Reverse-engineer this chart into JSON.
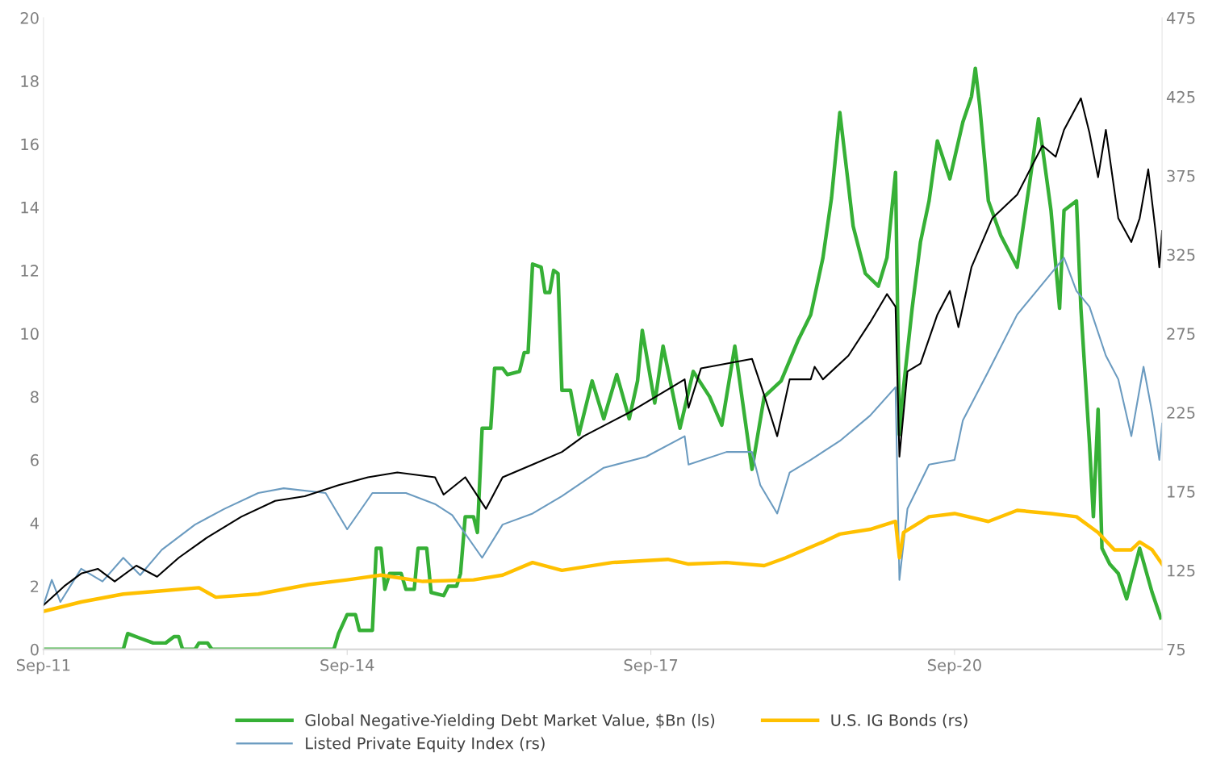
{
  "chart_data": {
    "type": "line",
    "xlim": [
      "2011-09-01",
      "2022-09-20"
    ],
    "xticks": [
      {
        "value": "2011-09-01",
        "label": "Sep-11"
      },
      {
        "value": "2014-09-01",
        "label": "Sep-14"
      },
      {
        "value": "2017-09-01",
        "label": "Sep-17"
      },
      {
        "value": "2020-09-01",
        "label": "Sep-20"
      }
    ],
    "ylim": [
      0,
      20
    ],
    "yticks": [
      0,
      2,
      4,
      6,
      8,
      10,
      12,
      14,
      16,
      18,
      20
    ],
    "y2lim": [
      75,
      475
    ],
    "y2ticks": [
      75,
      125,
      175,
      225,
      275,
      325,
      375,
      425,
      475
    ],
    "grid": false,
    "legend": "bottom",
    "series": [
      {
        "name": "Global Negative-Yielding Debt Market Value, $Bn (ls)",
        "color": "#36b036",
        "axis": "y",
        "x": [
          "2011-09-01",
          "2012-06-15",
          "2012-07-01",
          "2012-08-15",
          "2012-10-01",
          "2012-11-15",
          "2012-12-15",
          "2013-01-01",
          "2013-01-15",
          "2013-03-01",
          "2013-03-15",
          "2013-04-15",
          "2013-05-01",
          "2014-07-15",
          "2014-08-01",
          "2014-09-01",
          "2014-10-01",
          "2014-10-15",
          "2014-12-01",
          "2014-12-15",
          "2015-01-01",
          "2015-01-15",
          "2015-02-01",
          "2015-03-15",
          "2015-04-01",
          "2015-05-01",
          "2015-05-15",
          "2015-06-15",
          "2015-07-01",
          "2015-08-15",
          "2015-09-01",
          "2015-10-01",
          "2015-10-15",
          "2015-11-01",
          "2015-12-01",
          "2015-12-15",
          "2016-01-01",
          "2016-02-01",
          "2016-02-15",
          "2016-03-15",
          "2016-04-01",
          "2016-05-15",
          "2016-06-01",
          "2016-06-15",
          "2016-07-01",
          "2016-08-01",
          "2016-08-15",
          "2016-09-01",
          "2016-09-15",
          "2016-10-01",
          "2016-10-15",
          "2016-11-15",
          "2016-12-15",
          "2017-02-01",
          "2017-03-15",
          "2017-05-01",
          "2017-06-15",
          "2017-07-15",
          "2017-08-01",
          "2017-09-15",
          "2017-10-15",
          "2017-12-15",
          "2018-02-01",
          "2018-04-01",
          "2018-05-15",
          "2018-07-01",
          "2018-09-01",
          "2018-10-15",
          "2018-12-15",
          "2019-02-15",
          "2019-04-01",
          "2019-05-15",
          "2019-06-15",
          "2019-07-15",
          "2019-08-15",
          "2019-09-01",
          "2019-10-15",
          "2019-12-01",
          "2020-01-01",
          "2020-02-01",
          "2020-02-15",
          "2020-03-01",
          "2020-04-01",
          "2020-05-01",
          "2020-06-01",
          "2020-07-01",
          "2020-08-15",
          "2020-10-01",
          "2020-11-01",
          "2020-11-15",
          "2020-12-01",
          "2021-01-01",
          "2021-02-15",
          "2021-04-15",
          "2021-06-01",
          "2021-07-01",
          "2021-08-15",
          "2021-09-15",
          "2021-10-01",
          "2021-11-15",
          "2021-12-01",
          "2022-01-01",
          "2022-01-15",
          "2022-02-01",
          "2022-02-15",
          "2022-03-15",
          "2022-04-15",
          "2022-05-15",
          "2022-07-01",
          "2022-08-15",
          "2022-09-15"
        ],
        "values": [
          0,
          0,
          0.5,
          0.35,
          0.2,
          0.2,
          0.4,
          0.4,
          0,
          0,
          0.2,
          0.2,
          0,
          0,
          0.5,
          1.1,
          1.1,
          0.6,
          0.6,
          3.2,
          3.2,
          1.9,
          2.4,
          2.4,
          1.9,
          1.9,
          3.2,
          3.2,
          1.8,
          1.7,
          2.0,
          2.0,
          2.4,
          4.2,
          4.2,
          3.7,
          7.0,
          7.0,
          8.9,
          8.9,
          8.7,
          8.8,
          9.4,
          9.4,
          12.2,
          12.1,
          11.3,
          11.3,
          12.0,
          11.9,
          8.2,
          8.2,
          6.8,
          8.5,
          7.3,
          8.7,
          7.3,
          8.5,
          10.1,
          7.8,
          9.6,
          7.0,
          8.8,
          8.0,
          7.1,
          9.6,
          5.7,
          8.0,
          8.5,
          9.8,
          10.6,
          12.4,
          14.3,
          17.0,
          14.7,
          13.4,
          11.9,
          11.5,
          12.4,
          15.1,
          6.8,
          8.3,
          10.8,
          12.9,
          14.2,
          16.1,
          14.9,
          16.7,
          17.5,
          18.4,
          17.2,
          14.2,
          13.1,
          12.1,
          14.9,
          16.8,
          13.9,
          10.8,
          13.9,
          14.2,
          10.8,
          6.5,
          4.2,
          7.6,
          3.2,
          2.7,
          2.4,
          1.6,
          3.2,
          1.8,
          1.0
        ]
      },
      {
        "name": "Listed Private Equity Index (rs)",
        "color": "#6b9bc0",
        "axis": "y2",
        "x": [
          "2011-09-01",
          "2011-10-01",
          "2011-11-01",
          "2012-01-15",
          "2012-04-01",
          "2012-06-15",
          "2012-08-15",
          "2012-11-01",
          "2013-03-01",
          "2013-06-15",
          "2013-10-15",
          "2014-01-15",
          "2014-06-15",
          "2014-09-01",
          "2014-12-01",
          "2015-04-01",
          "2015-07-15",
          "2015-09-15",
          "2016-01-01",
          "2016-03-15",
          "2016-07-01",
          "2016-10-15",
          "2017-03-15",
          "2017-08-15",
          "2018-01-01",
          "2018-01-15",
          "2018-06-01",
          "2018-09-01",
          "2018-10-01",
          "2018-12-01",
          "2019-01-15",
          "2019-04-01",
          "2019-07-15",
          "2019-11-01",
          "2020-02-01",
          "2020-02-15",
          "2020-03-15",
          "2020-06-01",
          "2020-09-01",
          "2020-10-01",
          "2021-01-01",
          "2021-04-15",
          "2021-08-01",
          "2021-10-01",
          "2021-11-15",
          "2022-01-01",
          "2022-03-01",
          "2022-04-15",
          "2022-06-01",
          "2022-07-15",
          "2022-08-15",
          "2022-09-10",
          "2022-09-20"
        ],
        "values": [
          103,
          119,
          105,
          126,
          118,
          133,
          122,
          138,
          154,
          164,
          174,
          177,
          174,
          151,
          174,
          174,
          167,
          160,
          133,
          154,
          161,
          172,
          190,
          197,
          210,
          192,
          200,
          200,
          179,
          161,
          187,
          195,
          207,
          223,
          241,
          119,
          164,
          192,
          195,
          220,
          251,
          287,
          310,
          323,
          302,
          292,
          261,
          246,
          210,
          254,
          225,
          195,
          218
        ]
      },
      {
        "color": "#000000",
        "axis": "y2",
        "x": [
          "2011-09-01",
          "2011-10-15",
          "2011-11-15",
          "2012-01-15",
          "2012-03-15",
          "2012-05-15",
          "2012-08-01",
          "2012-10-15",
          "2013-01-01",
          "2013-04-15",
          "2013-08-15",
          "2013-12-15",
          "2014-04-01",
          "2014-08-01",
          "2014-11-15",
          "2015-03-01",
          "2015-07-15",
          "2015-08-15",
          "2015-11-01",
          "2016-01-15",
          "2016-03-15",
          "2016-07-01",
          "2016-10-15",
          "2017-01-01",
          "2017-06-15",
          "2017-11-15",
          "2018-01-01",
          "2018-01-15",
          "2018-03-01",
          "2018-09-01",
          "2018-10-15",
          "2018-12-01",
          "2019-01-15",
          "2019-04-01",
          "2019-04-15",
          "2019-05-15",
          "2019-08-15",
          "2019-11-01",
          "2020-01-01",
          "2020-02-01",
          "2020-02-15",
          "2020-03-15",
          "2020-05-01",
          "2020-07-01",
          "2020-08-15",
          "2020-09-15",
          "2020-11-01",
          "2021-01-15",
          "2021-04-15",
          "2021-07-15",
          "2021-09-01",
          "2021-10-01",
          "2021-12-01",
          "2022-01-01",
          "2022-02-01",
          "2022-03-01",
          "2022-04-15",
          "2022-06-01",
          "2022-07-01",
          "2022-08-01",
          "2022-09-01",
          "2022-09-10",
          "2022-09-20"
        ],
        "values": [
          103,
          110,
          115,
          123,
          126,
          118,
          128,
          121,
          133,
          146,
          159,
          169,
          172,
          179,
          184,
          187,
          184,
          173,
          184,
          164,
          184,
          192,
          200,
          210,
          225,
          241,
          246,
          228,
          253,
          259,
          236,
          210,
          246,
          246,
          254,
          246,
          261,
          282,
          300,
          292,
          197,
          251,
          256,
          287,
          302,
          279,
          317,
          348,
          363,
          394,
          387,
          404,
          424,
          402,
          374,
          404,
          348,
          333,
          348,
          379,
          333,
          317,
          340
        ]
      },
      {
        "name": "U.S. IG Bonds (rs)",
        "color": "#ffc000",
        "axis": "y2",
        "x": [
          "2011-09-01",
          "2012-01-15",
          "2012-06-15",
          "2012-11-01",
          "2013-03-15",
          "2013-05-15",
          "2013-10-15",
          "2014-04-15",
          "2014-09-01",
          "2015-01-01",
          "2015-06-01",
          "2015-12-01",
          "2016-03-15",
          "2016-07-01",
          "2016-10-15",
          "2017-04-15",
          "2017-11-01",
          "2018-01-15",
          "2018-06-01",
          "2018-10-15",
          "2019-01-01",
          "2019-05-15",
          "2019-07-15",
          "2019-11-01",
          "2020-02-01",
          "2020-02-15",
          "2020-03-01",
          "2020-06-01",
          "2020-09-01",
          "2021-01-01",
          "2021-04-15",
          "2021-08-15",
          "2021-11-15",
          "2022-02-01",
          "2022-04-01",
          "2022-06-01",
          "2022-07-01",
          "2022-08-15",
          "2022-09-20"
        ],
        "values": [
          99,
          105,
          110,
          112,
          114,
          108,
          110,
          116,
          119,
          122,
          118,
          119,
          122,
          130,
          125,
          130,
          132,
          129,
          130,
          128,
          133,
          143,
          148,
          151,
          156,
          133,
          149,
          159,
          161,
          156,
          163,
          161,
          159,
          149,
          138,
          138,
          143,
          138,
          129
        ]
      }
    ]
  }
}
